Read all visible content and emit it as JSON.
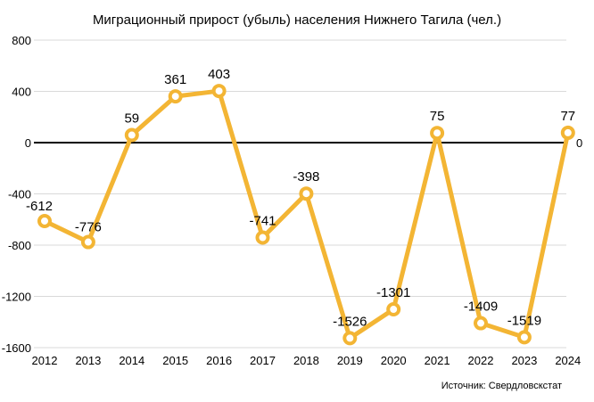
{
  "chart_data": {
    "type": "line",
    "title": "Миграционный прирост (убыль) населения Нижнего Тагила (чел.)",
    "source": "Источник: Свердловскстат",
    "xlabel": "",
    "ylabel": "",
    "x": [
      "2012",
      "2013",
      "2014",
      "2015",
      "2016",
      "2017",
      "2018",
      "2019",
      "2020",
      "2021",
      "2022",
      "2023",
      "2024"
    ],
    "series": [
      {
        "values": [
          -612,
          -776,
          59,
          361,
          403,
          -741,
          -398,
          -1526,
          -1301,
          75,
          -1409,
          -1519,
          77
        ]
      }
    ],
    "data_labels": [
      "-612",
      "-776",
      "59",
      "361",
      "403",
      "-741",
      "-398",
      "-1526",
      "-1301",
      "75",
      "-1409",
      "-1519",
      "77"
    ],
    "ylim": [
      -1600,
      800
    ],
    "yticks": [
      800,
      400,
      0,
      -400,
      -800,
      -1200,
      -1600
    ],
    "ytick_labels": [
      "800",
      "400",
      "0",
      "-400",
      "-800",
      "-1200",
      "-1600"
    ],
    "zero_line_label": "0",
    "grid": true,
    "colors": {
      "line": "#F3B534",
      "marker_fill": "#ffffff",
      "grid": "#d9d9d9",
      "zero_line": "#000000"
    }
  }
}
